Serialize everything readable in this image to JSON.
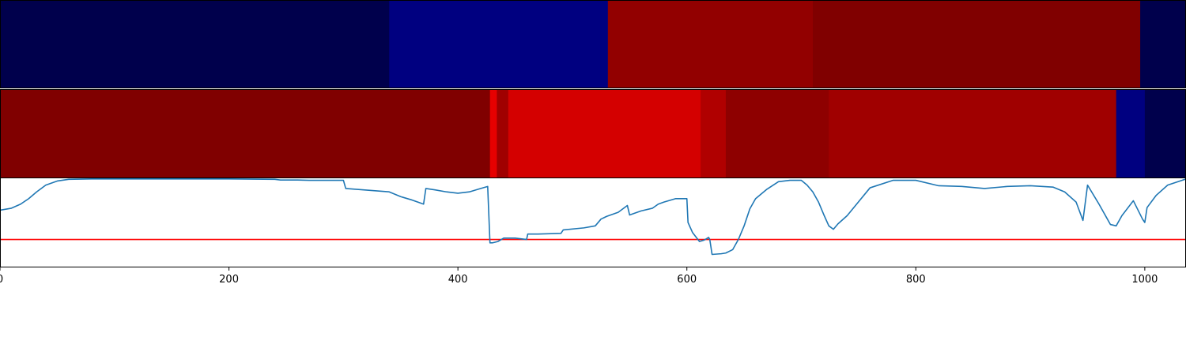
{
  "chart_data": [
    {
      "type": "heatmap",
      "orientation": "row-strip",
      "x_range": [
        0,
        1036
      ],
      "segments": [
        {
          "start": 0,
          "end": 340,
          "color": "#00004c"
        },
        {
          "start": 340,
          "end": 531,
          "color": "#000080"
        },
        {
          "start": 531,
          "end": 710,
          "color": "#920000"
        },
        {
          "start": 710,
          "end": 996,
          "color": "#800000"
        },
        {
          "start": 996,
          "end": 1036,
          "color": "#00004c"
        }
      ]
    },
    {
      "type": "heatmap",
      "orientation": "row-strip",
      "x_range": [
        0,
        1036
      ],
      "segments": [
        {
          "start": 0,
          "end": 428,
          "color": "#800000"
        },
        {
          "start": 428,
          "end": 434,
          "color": "#e60000"
        },
        {
          "start": 434,
          "end": 444,
          "color": "#a00000"
        },
        {
          "start": 444,
          "end": 612,
          "color": "#d40000"
        },
        {
          "start": 612,
          "end": 634,
          "color": "#b00000"
        },
        {
          "start": 634,
          "end": 724,
          "color": "#8e0000"
        },
        {
          "start": 724,
          "end": 975,
          "color": "#a00000"
        },
        {
          "start": 975,
          "end": 1000,
          "color": "#000080"
        },
        {
          "start": 1000,
          "end": 1036,
          "color": "#00004c"
        }
      ]
    },
    {
      "type": "line",
      "xlim": [
        0,
        1036
      ],
      "ylim": [
        -0.3,
        1.0
      ],
      "xticks": [
        0,
        200,
        400,
        600,
        800,
        1000
      ],
      "threshold": {
        "value": 0.1,
        "color": "#ff0000"
      },
      "series": [
        {
          "color": "#1f77b4",
          "x": [
            0,
            10,
            18,
            25,
            32,
            40,
            50,
            60,
            80,
            100,
            150,
            200,
            240,
            245,
            260,
            270,
            300,
            302,
            340,
            350,
            360,
            370,
            372,
            380,
            390,
            400,
            410,
            420,
            426,
            428,
            430,
            435,
            440,
            445,
            450,
            460,
            461,
            470,
            490,
            492,
            510,
            520,
            525,
            530,
            540,
            548,
            550,
            560,
            570,
            575,
            580,
            590,
            600,
            601,
            605,
            611,
            615,
            619,
            620,
            622,
            630,
            634,
            640,
            645,
            650,
            655,
            660,
            670,
            680,
            690,
            700,
            705,
            710,
            715,
            720,
            724,
            728,
            732,
            740,
            760,
            780,
            800,
            820,
            840,
            860,
            880,
            900,
            920,
            930,
            940,
            946,
            950,
            960,
            970,
            975,
            980,
            990,
            998,
            1000,
            1002,
            1010,
            1020,
            1036
          ],
          "y": [
            0.53,
            0.56,
            0.62,
            0.7,
            0.8,
            0.9,
            0.96,
            0.985,
            0.99,
            0.99,
            0.99,
            0.99,
            0.985,
            0.975,
            0.975,
            0.97,
            0.97,
            0.85,
            0.8,
            0.73,
            0.68,
            0.62,
            0.85,
            0.83,
            0.8,
            0.78,
            0.8,
            0.85,
            0.88,
            0.05,
            0.05,
            0.07,
            0.12,
            0.12,
            0.12,
            0.1,
            0.18,
            0.18,
            0.19,
            0.24,
            0.27,
            0.3,
            0.4,
            0.44,
            0.5,
            0.6,
            0.46,
            0.52,
            0.56,
            0.62,
            0.65,
            0.7,
            0.7,
            0.35,
            0.2,
            0.07,
            0.09,
            0.13,
            0.1,
            -0.12,
            -0.11,
            -0.1,
            -0.05,
            0.1,
            0.3,
            0.55,
            0.7,
            0.84,
            0.95,
            0.97,
            0.97,
            0.9,
            0.8,
            0.65,
            0.45,
            0.3,
            0.25,
            0.33,
            0.45,
            0.86,
            0.97,
            0.97,
            0.89,
            0.88,
            0.85,
            0.88,
            0.89,
            0.87,
            0.8,
            0.65,
            0.38,
            0.9,
            0.62,
            0.32,
            0.3,
            0.45,
            0.67,
            0.4,
            0.35,
            0.57,
            0.75,
            0.9,
            0.99
          ]
        }
      ]
    }
  ]
}
